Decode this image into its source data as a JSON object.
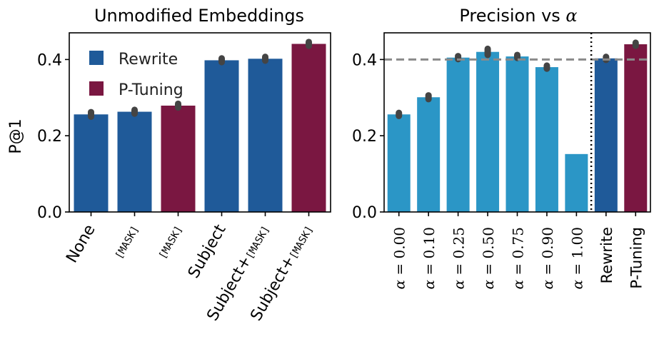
{
  "colors": {
    "rewrite": "#1f5a99",
    "ptuning": "#7a1741",
    "alpha": "#2b96c6",
    "errorbar": "#444444",
    "reference": "#8a8a8a"
  },
  "chart_data": [
    {
      "type": "bar",
      "title": "Unmodified Embeddings",
      "ylabel": "P@1",
      "ylim": [
        0,
        0.47
      ],
      "yticks": [
        "0.0",
        "0.2",
        "0.4"
      ],
      "legend": {
        "placement": "top-left",
        "entries": [
          {
            "label": "Rewrite",
            "color_key": "rewrite"
          },
          {
            "label": "P-Tuning",
            "color_key": "ptuning"
          }
        ]
      },
      "categories": [
        {
          "label": "None",
          "mono": ""
        },
        {
          "label": "",
          "mono": "[MASK]"
        },
        {
          "label": "",
          "mono": "[MASK]"
        },
        {
          "label": "Subject",
          "mono": ""
        },
        {
          "label": "Subject+",
          "mono": "[MASK]"
        },
        {
          "label": "Subject+",
          "mono": "[MASK]"
        }
      ],
      "values": [
        0.256,
        0.263,
        0.279,
        0.398,
        0.402,
        0.441
      ],
      "series_of_bar": [
        "rewrite",
        "rewrite",
        "ptuning",
        "rewrite",
        "rewrite",
        "ptuning"
      ],
      "errors": [
        0.006,
        0.005,
        0.005,
        0.005,
        0.005,
        0.005
      ]
    },
    {
      "type": "bar",
      "title_prefix": "Precision vs ",
      "title_symbol": "α",
      "ylim": [
        0,
        0.47
      ],
      "yticks": [
        "0.0",
        "0.2",
        "0.4"
      ],
      "reference_line": 0.4,
      "categories": [
        {
          "symbol": "α",
          "eq": " = ",
          "value": "0.00"
        },
        {
          "symbol": "α",
          "eq": " = ",
          "value": "0.10"
        },
        {
          "symbol": "α",
          "eq": " = ",
          "value": "0.25"
        },
        {
          "symbol": "α",
          "eq": " = ",
          "value": "0.50"
        },
        {
          "symbol": "α",
          "eq": " = ",
          "value": "0.75"
        },
        {
          "symbol": "α",
          "eq": " = ",
          "value": "0.90"
        },
        {
          "symbol": "α",
          "eq": " = ",
          "value": "1.00"
        },
        {
          "label": "Rewrite"
        },
        {
          "label": "P-Tuning"
        }
      ],
      "values": [
        0.256,
        0.301,
        0.405,
        0.42,
        0.408,
        0.38,
        0.152,
        0.403,
        0.44
      ],
      "series_of_bar": [
        "alpha",
        "alpha",
        "alpha",
        "alpha",
        "alpha",
        "alpha",
        "alpha",
        "rewrite",
        "ptuning"
      ],
      "errors": [
        0.004,
        0.005,
        0.004,
        0.008,
        0.004,
        0.004,
        0,
        0.004,
        0.004
      ],
      "separator_after_index": 6
    }
  ]
}
